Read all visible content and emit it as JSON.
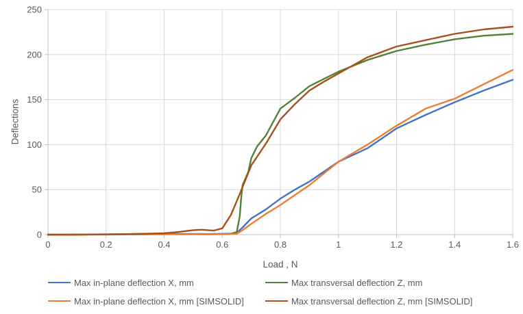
{
  "chart_data": {
    "type": "line",
    "title": "",
    "xlabel": "Load , N",
    "ylabel": "Deflections",
    "xlim": [
      0,
      1.6
    ],
    "ylim": [
      0,
      250
    ],
    "x_ticks": [
      0,
      0.2,
      0.4,
      0.6,
      0.8,
      1,
      1.2,
      1.4,
      1.6
    ],
    "x_tick_labels": [
      "0",
      "0.2",
      "0.4",
      "0.6",
      "0.8",
      "1",
      "1.2",
      "1.4",
      "1.6"
    ],
    "y_ticks": [
      0,
      50,
      100,
      150,
      200,
      250
    ],
    "y_tick_labels": [
      "0",
      "50",
      "100",
      "150",
      "200",
      "250"
    ],
    "grid": true,
    "legend_position": "bottom",
    "colors": {
      "gridline": "#D9D9D9",
      "axis_line": "#BFBFBF",
      "tick_text": "#595959"
    },
    "series": [
      {
        "name": "Max in-plane deflection X, mm",
        "color": "#4472C4",
        "points": [
          [
            0,
            0
          ],
          [
            0.05,
            0
          ],
          [
            0.1,
            0.2
          ],
          [
            0.2,
            0.3
          ],
          [
            0.3,
            0.5
          ],
          [
            0.4,
            0.8
          ],
          [
            0.5,
            0.8
          ],
          [
            0.55,
            0.7
          ],
          [
            0.6,
            0.9
          ],
          [
            0.63,
            1.2
          ],
          [
            0.65,
            2
          ],
          [
            0.67,
            8
          ],
          [
            0.7,
            18
          ],
          [
            0.75,
            28
          ],
          [
            0.8,
            40
          ],
          [
            0.85,
            50
          ],
          [
            0.9,
            59
          ],
          [
            0.95,
            70
          ],
          [
            1,
            81
          ],
          [
            1.1,
            96
          ],
          [
            1.2,
            118
          ],
          [
            1.3,
            133
          ],
          [
            1.4,
            147
          ],
          [
            1.5,
            160
          ],
          [
            1.6,
            172
          ]
        ]
      },
      {
        "name": "Max transversal deflection Z, mm",
        "color": "#548235",
        "points": [
          [
            0,
            0
          ],
          [
            0.1,
            0
          ],
          [
            0.2,
            0.2
          ],
          [
            0.3,
            0.4
          ],
          [
            0.4,
            0.6
          ],
          [
            0.5,
            0.6
          ],
          [
            0.55,
            0.3
          ],
          [
            0.6,
            0.5
          ],
          [
            0.63,
            1
          ],
          [
            0.65,
            3
          ],
          [
            0.66,
            20
          ],
          [
            0.665,
            40
          ],
          [
            0.67,
            55
          ],
          [
            0.69,
            70
          ],
          [
            0.7,
            85
          ],
          [
            0.72,
            98
          ],
          [
            0.75,
            110
          ],
          [
            0.8,
            140
          ],
          [
            0.85,
            152
          ],
          [
            0.9,
            165
          ],
          [
            0.95,
            173
          ],
          [
            1,
            181
          ],
          [
            1.1,
            194
          ],
          [
            1.2,
            204
          ],
          [
            1.3,
            211
          ],
          [
            1.4,
            217
          ],
          [
            1.5,
            221
          ],
          [
            1.6,
            223
          ]
        ]
      },
      {
        "name": "Max in-plane deflection X, mm [SIMSOLID]",
        "color": "#ED7D31",
        "points": [
          [
            0,
            0
          ],
          [
            0.1,
            0
          ],
          [
            0.2,
            0.1
          ],
          [
            0.3,
            0.2
          ],
          [
            0.4,
            0.3
          ],
          [
            0.5,
            0.4
          ],
          [
            0.6,
            0.5
          ],
          [
            0.65,
            1
          ],
          [
            0.67,
            5
          ],
          [
            0.7,
            12
          ],
          [
            0.75,
            23
          ],
          [
            0.8,
            33
          ],
          [
            0.85,
            44
          ],
          [
            0.9,
            55
          ],
          [
            0.95,
            68
          ],
          [
            1,
            81
          ],
          [
            1.1,
            100
          ],
          [
            1.2,
            121
          ],
          [
            1.3,
            140
          ],
          [
            1.4,
            151
          ],
          [
            1.5,
            167
          ],
          [
            1.6,
            183
          ]
        ]
      },
      {
        "name": "Max transversal deflection Z, mm [SIMSOLID]",
        "color": "#A85019",
        "points": [
          [
            0,
            0
          ],
          [
            0.1,
            0
          ],
          [
            0.2,
            0.3
          ],
          [
            0.3,
            0.8
          ],
          [
            0.4,
            1.5
          ],
          [
            0.45,
            3
          ],
          [
            0.5,
            5
          ],
          [
            0.53,
            5.5
          ],
          [
            0.57,
            4.5
          ],
          [
            0.6,
            7
          ],
          [
            0.63,
            22
          ],
          [
            0.66,
            45
          ],
          [
            0.7,
            77
          ],
          [
            0.75,
            101
          ],
          [
            0.8,
            128
          ],
          [
            0.85,
            145
          ],
          [
            0.9,
            160
          ],
          [
            0.95,
            170
          ],
          [
            1,
            179
          ],
          [
            1.1,
            197
          ],
          [
            1.2,
            209
          ],
          [
            1.3,
            216
          ],
          [
            1.4,
            223
          ],
          [
            1.5,
            228
          ],
          [
            1.6,
            231
          ]
        ]
      }
    ]
  },
  "legend": {
    "items": [
      {
        "label": "Max in-plane deflection X, mm"
      },
      {
        "label": "Max transversal deflection Z, mm"
      },
      {
        "label": "Max in-plane deflection X, mm [SIMSOLID]"
      },
      {
        "label": "Max transversal deflection Z, mm [SIMSOLID]"
      }
    ]
  }
}
